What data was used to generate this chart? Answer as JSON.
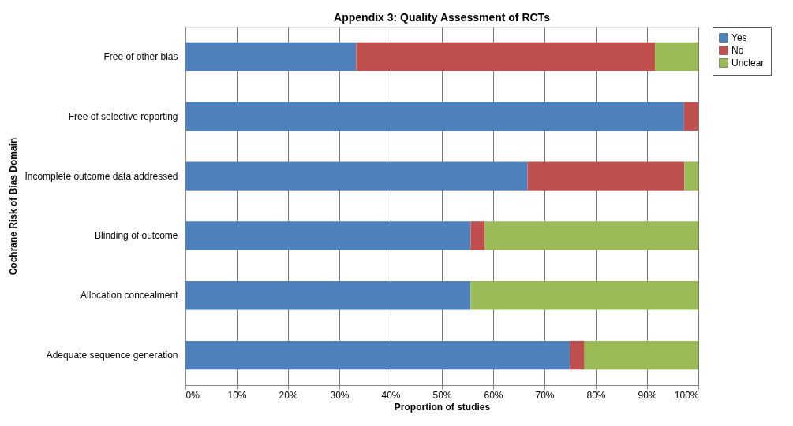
{
  "chart_data": {
    "type": "bar",
    "orientation": "horizontal",
    "stacked": true,
    "title": "Appendix 3: Quality Assessment of RCTs",
    "xlabel": "Proportion of studies",
    "ylabel": "Cochrane Risk of Bias Domain",
    "categories": [
      "Free of other bias",
      "Free of selective reporting",
      "Incomplete outcome data addressed",
      "Blinding of outcome",
      "Allocation concealment",
      "Adequate sequence generation"
    ],
    "series": [
      {
        "name": "Yes",
        "color": "#4f81bd",
        "values": [
          33.3,
          97.2,
          66.7,
          55.6,
          55.6,
          75.0
        ]
      },
      {
        "name": "No",
        "color": "#c0504d",
        "values": [
          58.3,
          2.8,
          30.6,
          2.8,
          0,
          2.8
        ]
      },
      {
        "name": "Unclear",
        "color": "#9bbb59",
        "values": [
          8.4,
          0,
          2.7,
          41.6,
          44.4,
          22.2
        ]
      }
    ],
    "xlim": [
      0,
      100
    ],
    "xticks": [
      {
        "value": 0,
        "label": "0%"
      },
      {
        "value": 10,
        "label": "10%"
      },
      {
        "value": 20,
        "label": "20%"
      },
      {
        "value": 30,
        "label": "30%"
      },
      {
        "value": 40,
        "label": "40%"
      },
      {
        "value": 50,
        "label": "50%"
      },
      {
        "value": 60,
        "label": "60%"
      },
      {
        "value": 70,
        "label": "70%"
      },
      {
        "value": 80,
        "label": "80%"
      },
      {
        "value": 90,
        "label": "90%"
      },
      {
        "value": 100,
        "label": "100%"
      }
    ],
    "grid": "x",
    "legend": "right"
  }
}
